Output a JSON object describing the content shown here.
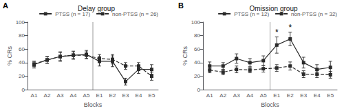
{
  "chart_data": [
    {
      "type": "line",
      "title": "Delay group",
      "x_label": "Blocks",
      "y_label": "% CRs",
      "categories": [
        "A1",
        "A2",
        "A3",
        "A4",
        "A5",
        "E1",
        "E2",
        "E3",
        "E4",
        "E5"
      ],
      "series": [
        {
          "name": "PTSS (n = 17)",
          "color": "#2b2b2b",
          "line_style": "solid",
          "marker": "square",
          "values": [
            37,
            44,
            49,
            51,
            52,
            42,
            42,
            12,
            30,
            30
          ],
          "errors": [
            5,
            5,
            7,
            6,
            6,
            7,
            8,
            5,
            6,
            7
          ]
        },
        {
          "name": "non-PTSS (n = 26)",
          "color": "#2b2b2b",
          "line_style": "dashed",
          "marker": "square",
          "values": [
            38,
            44,
            49,
            51,
            51,
            46,
            45,
            35,
            35,
            20
          ],
          "errors": [
            4,
            5,
            6,
            5,
            5,
            6,
            7,
            5,
            5,
            6
          ]
        }
      ],
      "ylim": [
        0,
        100
      ],
      "yticks": [
        0,
        20,
        40,
        60,
        80,
        100
      ],
      "grid": false,
      "legend": "upper right",
      "annotations": [
        {
          "type": "panel_label",
          "text": "A"
        },
        {
          "type": "vline",
          "between": [
            "A5",
            "E1"
          ]
        }
      ]
    },
    {
      "type": "line",
      "title": "Omission group",
      "x_label": "Blocks",
      "y_label": "% CRs",
      "categories": [
        "A1",
        "A2",
        "A3",
        "A4",
        "A5",
        "E1",
        "E2",
        "E3",
        "E4",
        "E5"
      ],
      "series": [
        {
          "name": "PTSS (n = 12)",
          "color": "#2b2b2b",
          "line_style": "solid",
          "marker": "square",
          "values": [
            35,
            35,
            46,
            40,
            43,
            66,
            75,
            40,
            30,
            33
          ],
          "errors": [
            6,
            5,
            7,
            6,
            7,
            12,
            10,
            8,
            7,
            9
          ]
        },
        {
          "name": "non-PTSS (n = 32)",
          "color": "#2b2b2b",
          "line_style": "dashed",
          "marker": "square",
          "values": [
            29,
            26,
            30,
            29,
            31,
            32,
            35,
            23,
            23,
            22
          ],
          "errors": [
            4,
            4,
            5,
            4,
            5,
            5,
            6,
            5,
            5,
            5
          ]
        }
      ],
      "ylim": [
        0,
        100
      ],
      "yticks": [
        0,
        20,
        40,
        60,
        80,
        100
      ],
      "grid": false,
      "legend": "upper right",
      "annotations": [
        {
          "type": "panel_label",
          "text": "B"
        },
        {
          "type": "vline",
          "between": [
            "A5",
            "E1"
          ]
        },
        {
          "type": "text",
          "text": "*",
          "category": "E1",
          "series": "PTSS (n = 12)"
        },
        {
          "type": "text",
          "text": "*",
          "category": "E2",
          "series": "PTSS (n = 12)"
        }
      ]
    }
  ]
}
